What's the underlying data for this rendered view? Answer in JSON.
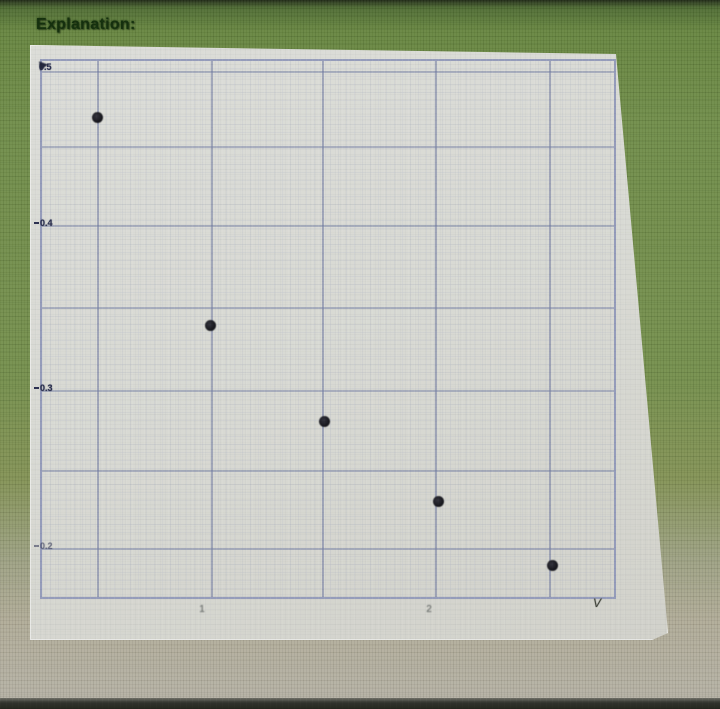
{
  "page": {
    "heading": "Explanation:"
  },
  "chart_data": {
    "type": "scatter",
    "x": [
      0.5,
      1,
      1.5,
      2,
      2.5
    ],
    "y": [
      0.47,
      0.34,
      0.28,
      0.23,
      0.19
    ],
    "title": "",
    "xlabel": "V",
    "ylabel": "",
    "xticks": [
      "1",
      "2"
    ],
    "xtick_values": [
      1,
      2
    ],
    "yticks": [
      "0.5",
      "0.4",
      "0.3",
      "0.2"
    ],
    "ytick_values": [
      0.5,
      0.4,
      0.3,
      0.2
    ],
    "xlim": [
      0.25,
      2.77
    ],
    "ylim": [
      0.17,
      0.51
    ],
    "grid": true,
    "legend": null,
    "point_color": "#17171d"
  },
  "colors": {
    "background_green": "#6f8c48",
    "panel_gray": "#d9dad4",
    "grid_blue": "#747ea2",
    "heading_text": "#15300e",
    "dot": "#17171d"
  }
}
